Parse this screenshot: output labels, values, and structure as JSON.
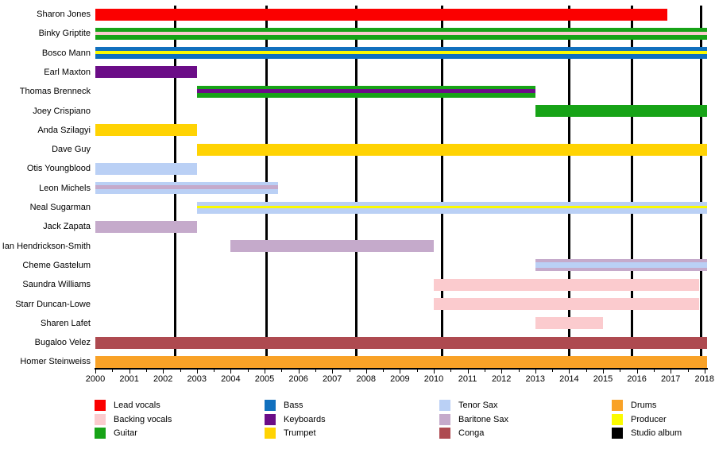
{
  "chart_data": {
    "type": "bar",
    "variant": "horizontal-timeline-gantt (band members by year and role)",
    "title": "",
    "xlabel": "",
    "ylabel": "",
    "grid": false,
    "legend_position": "bottom",
    "x_axis": {
      "min": 2000,
      "max": 2018,
      "major_tick_interval": 1,
      "minor_tick_interval": 0.5
    },
    "palette": {
      "Lead vocals": "#fb0000",
      "Backing vocals": "#fbcbce",
      "Guitar": "#17a317",
      "Bass": "#1170be",
      "Keyboards": "#6b0d87",
      "Trumpet": "#ffd303",
      "Tenor Sax": "#bad0f5",
      "Baritone Sax": "#c5aacb",
      "Conga": "#ae4a50",
      "Drums": "#f9a227",
      "Producer": "#fbfb00",
      "Studio album": "#000000"
    },
    "members": [
      {
        "name": "Sharon Jones",
        "start": 2000,
        "end": 2016.9,
        "roles": [
          "Lead vocals"
        ],
        "stripes": [
          {
            "role": "Lead vocals",
            "weight": 1
          }
        ]
      },
      {
        "name": "Binky Griptite",
        "start": 2000,
        "end": 2018.08,
        "roles": [
          "Guitar",
          "Backing vocals"
        ],
        "stripes": [
          {
            "role": "Guitar",
            "weight": 5
          },
          {
            "role": "Backing vocals",
            "weight": 4
          },
          {
            "role": "Guitar",
            "weight": 6
          }
        ]
      },
      {
        "name": "Bosco Mann",
        "start": 2000,
        "end": 2018.08,
        "roles": [
          "Bass",
          "Producer"
        ],
        "stripes": [
          {
            "role": "Bass",
            "weight": 5
          },
          {
            "role": "Producer",
            "weight": 4
          },
          {
            "role": "Bass",
            "weight": 6
          }
        ]
      },
      {
        "name": "Earl Maxton",
        "start": 2000,
        "end": 2003,
        "roles": [
          "Keyboards"
        ],
        "stripes": [
          {
            "role": "Keyboards",
            "weight": 1
          }
        ]
      },
      {
        "name": "Thomas Brenneck",
        "start": 2003,
        "end": 2013,
        "roles": [
          "Guitar",
          "Keyboards"
        ],
        "stripes": [
          {
            "role": "Guitar",
            "weight": 4
          },
          {
            "role": "Keyboards",
            "weight": 5
          },
          {
            "role": "Guitar",
            "weight": 6
          }
        ]
      },
      {
        "name": "Joey Crispiano",
        "start": 2013,
        "end": 2018.08,
        "roles": [
          "Guitar"
        ],
        "stripes": [
          {
            "role": "Guitar",
            "weight": 1
          }
        ]
      },
      {
        "name": "Anda Szilagyi",
        "start": 2000,
        "end": 2003,
        "roles": [
          "Trumpet"
        ],
        "stripes": [
          {
            "role": "Trumpet",
            "weight": 1
          }
        ]
      },
      {
        "name": "Dave Guy",
        "start": 2003,
        "end": 2018.08,
        "roles": [
          "Trumpet"
        ],
        "stripes": [
          {
            "role": "Trumpet",
            "weight": 1
          }
        ]
      },
      {
        "name": "Otis Youngblood",
        "start": 2000,
        "end": 2003,
        "roles": [
          "Tenor Sax"
        ],
        "stripes": [
          {
            "role": "Tenor Sax",
            "weight": 1
          }
        ]
      },
      {
        "name": "Leon Michels",
        "start": 2000,
        "end": 2005.4,
        "roles": [
          "Tenor Sax",
          "Baritone Sax"
        ],
        "stripes": [
          {
            "role": "Tenor Sax",
            "weight": 4
          },
          {
            "role": "Baritone Sax",
            "weight": 5
          },
          {
            "role": "Tenor Sax",
            "weight": 6
          }
        ]
      },
      {
        "name": "Neal Sugarman",
        "start": 2003,
        "end": 2018.08,
        "roles": [
          "Tenor Sax",
          "Producer"
        ],
        "stripes": [
          {
            "role": "Tenor Sax",
            "weight": 5
          },
          {
            "role": "Producer",
            "weight": 3
          },
          {
            "role": "Tenor Sax",
            "weight": 7
          }
        ]
      },
      {
        "name": "Jack Zapata",
        "start": 2000,
        "end": 2003,
        "roles": [
          "Baritone Sax"
        ],
        "stripes": [
          {
            "role": "Baritone Sax",
            "weight": 1
          }
        ]
      },
      {
        "name": "Ian Hendrickson-Smith",
        "start": 2004,
        "end": 2010,
        "roles": [
          "Baritone Sax"
        ],
        "stripes": [
          {
            "role": "Baritone Sax",
            "weight": 1
          }
        ]
      },
      {
        "name": "Cheme Gastelum",
        "start": 2013,
        "end": 2018.08,
        "roles": [
          "Baritone Sax",
          "Tenor Sax"
        ],
        "stripes": [
          {
            "role": "Baritone Sax",
            "weight": 4
          },
          {
            "role": "Tenor Sax",
            "weight": 7
          },
          {
            "role": "Baritone Sax",
            "weight": 4
          }
        ]
      },
      {
        "name": "Saundra Williams",
        "start": 2010,
        "end": 2017.85,
        "roles": [
          "Backing vocals"
        ],
        "stripes": [
          {
            "role": "Backing vocals",
            "weight": 1
          }
        ]
      },
      {
        "name": "Starr Duncan-Lowe",
        "start": 2010,
        "end": 2017.85,
        "roles": [
          "Backing vocals"
        ],
        "stripes": [
          {
            "role": "Backing vocals",
            "weight": 1
          }
        ]
      },
      {
        "name": "Sharen Lafet",
        "start": 2013,
        "end": 2015,
        "roles": [
          "Backing vocals"
        ],
        "stripes": [
          {
            "role": "Backing vocals",
            "weight": 1
          }
        ]
      },
      {
        "name": "Bugaloo Velez",
        "start": 2000,
        "end": 2018.08,
        "roles": [
          "Conga"
        ],
        "stripes": [
          {
            "role": "Conga",
            "weight": 1
          }
        ]
      },
      {
        "name": "Homer Steinweiss",
        "start": 2000,
        "end": 2018.08,
        "roles": [
          "Drums"
        ],
        "stripes": [
          {
            "role": "Drums",
            "weight": 1
          }
        ]
      }
    ],
    "studio_album_markers": {
      "role": "Studio album",
      "years": [
        2002.35,
        2005.05,
        2007.7,
        2010.25,
        2014.0,
        2015.85,
        2017.9
      ]
    },
    "legend_columns": [
      [
        {
          "label": "Lead vocals",
          "role": "Lead vocals"
        },
        {
          "label": "Backing vocals",
          "role": "Backing vocals"
        },
        {
          "label": "Guitar",
          "role": "Guitar"
        }
      ],
      [
        {
          "label": "Bass",
          "role": "Bass"
        },
        {
          "label": "Keyboards",
          "role": "Keyboards"
        },
        {
          "label": "Trumpet",
          "role": "Trumpet"
        }
      ],
      [
        {
          "label": "Tenor Sax",
          "role": "Tenor Sax"
        },
        {
          "label": "Baritone Sax",
          "role": "Baritone Sax"
        },
        {
          "label": "Conga",
          "role": "Conga"
        }
      ],
      [
        {
          "label": "Drums",
          "role": "Drums"
        },
        {
          "label": "Producer",
          "role": "Producer"
        },
        {
          "label": "Studio album",
          "role": "Studio album"
        }
      ]
    ]
  }
}
